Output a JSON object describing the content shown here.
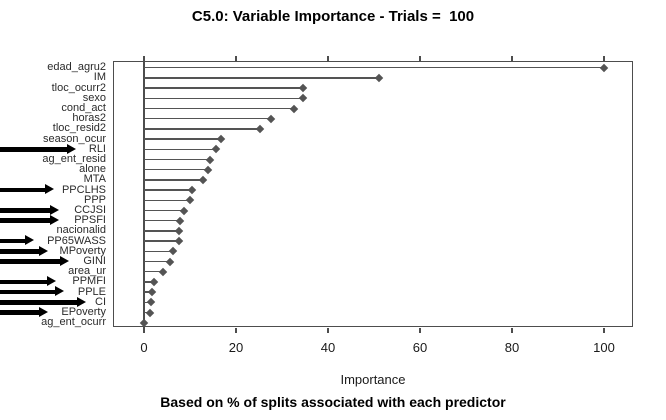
{
  "chart_data": {
    "type": "bar",
    "style": "horizontal-lollipop-dotplot",
    "title": "C5.0: Variable Importance - Trials =  100",
    "xlabel": "Importance",
    "footer": "Based on % of splits associated with each predictor",
    "xlim": [
      0,
      106
    ],
    "x_ticks": [
      0,
      20,
      40,
      60,
      80,
      100
    ],
    "grid": false,
    "legend": null,
    "point_color": "#545454",
    "box_color": "#4d4d4d",
    "annotation_arrow_color": "#000000",
    "categories": [
      "edad_agru2",
      "IM",
      "tloc_ocurr2",
      "sexo",
      "cond_act",
      "horas2",
      "tloc_resid2",
      "season_ocur",
      "RLI",
      "ag_ent_resid",
      "alone",
      "MTA",
      "PPCLHS",
      "PPP",
      "CCJSI",
      "PPSFI",
      "nacionalid",
      "PP65WASS",
      "MPoverty",
      "GINI",
      "area_ur",
      "PPMFI",
      "PPLE",
      "CI",
      "EPoverty",
      "ag_ent_ocurr"
    ],
    "values": [
      100,
      51,
      34.5,
      34.5,
      32.5,
      27.5,
      25.2,
      16.8,
      15.7,
      14.4,
      13.9,
      12.9,
      10.5,
      10,
      8.7,
      7.9,
      7.6,
      7.6,
      6.3,
      5.7,
      4.1,
      2.2,
      1.8,
      1.6,
      1.2,
      0
    ],
    "rows": [
      {
        "label": "edad_agru2",
        "value": 100,
        "arrow": false,
        "arrow_tip_x": 0
      },
      {
        "label": "IM",
        "value": 51,
        "arrow": false,
        "arrow_tip_x": 0
      },
      {
        "label": "tloc_ocurr2",
        "value": 34.5,
        "arrow": false,
        "arrow_tip_x": 0
      },
      {
        "label": "sexo",
        "value": 34.5,
        "arrow": false,
        "arrow_tip_x": 0
      },
      {
        "label": "cond_act",
        "value": 32.5,
        "arrow": false,
        "arrow_tip_x": 0
      },
      {
        "label": "horas2",
        "value": 27.5,
        "arrow": false,
        "arrow_tip_x": 0
      },
      {
        "label": "tloc_resid2",
        "value": 25.2,
        "arrow": false,
        "arrow_tip_x": 0
      },
      {
        "label": "season_ocur",
        "value": 16.8,
        "arrow": false,
        "arrow_tip_x": 0
      },
      {
        "label": "RLI",
        "value": 15.7,
        "arrow": true,
        "arrow_tip_x": 76
      },
      {
        "label": "ag_ent_resid",
        "value": 14.4,
        "arrow": false,
        "arrow_tip_x": 0
      },
      {
        "label": "alone",
        "value": 13.9,
        "arrow": false,
        "arrow_tip_x": 0
      },
      {
        "label": "MTA",
        "value": 12.9,
        "arrow": false,
        "arrow_tip_x": 0
      },
      {
        "label": "PPCLHS",
        "value": 10.5,
        "arrow": true,
        "arrow_tip_x": 54
      },
      {
        "label": "PPP",
        "value": 10,
        "arrow": false,
        "arrow_tip_x": 0
      },
      {
        "label": "CCJSI",
        "value": 8.7,
        "arrow": true,
        "arrow_tip_x": 59
      },
      {
        "label": "PPSFI",
        "value": 7.9,
        "arrow": true,
        "arrow_tip_x": 59
      },
      {
        "label": "nacionalid",
        "value": 7.6,
        "arrow": false,
        "arrow_tip_x": 0
      },
      {
        "label": "PP65WASS",
        "value": 7.6,
        "arrow": true,
        "arrow_tip_x": 34
      },
      {
        "label": "MPoverty",
        "value": 6.3,
        "arrow": true,
        "arrow_tip_x": 48
      },
      {
        "label": "GINI",
        "value": 5.7,
        "arrow": true,
        "arrow_tip_x": 69
      },
      {
        "label": "area_ur",
        "value": 4.1,
        "arrow": false,
        "arrow_tip_x": 0
      },
      {
        "label": "PPMFI",
        "value": 2.2,
        "arrow": true,
        "arrow_tip_x": 56
      },
      {
        "label": "PPLE",
        "value": 1.8,
        "arrow": true,
        "arrow_tip_x": 64
      },
      {
        "label": "CI",
        "value": 1.6,
        "arrow": true,
        "arrow_tip_x": 86
      },
      {
        "label": "EPoverty",
        "value": 1.2,
        "arrow": true,
        "arrow_tip_x": 48
      },
      {
        "label": "ag_ent_ocurr",
        "value": 0,
        "arrow": false,
        "arrow_tip_x": 0
      }
    ]
  }
}
